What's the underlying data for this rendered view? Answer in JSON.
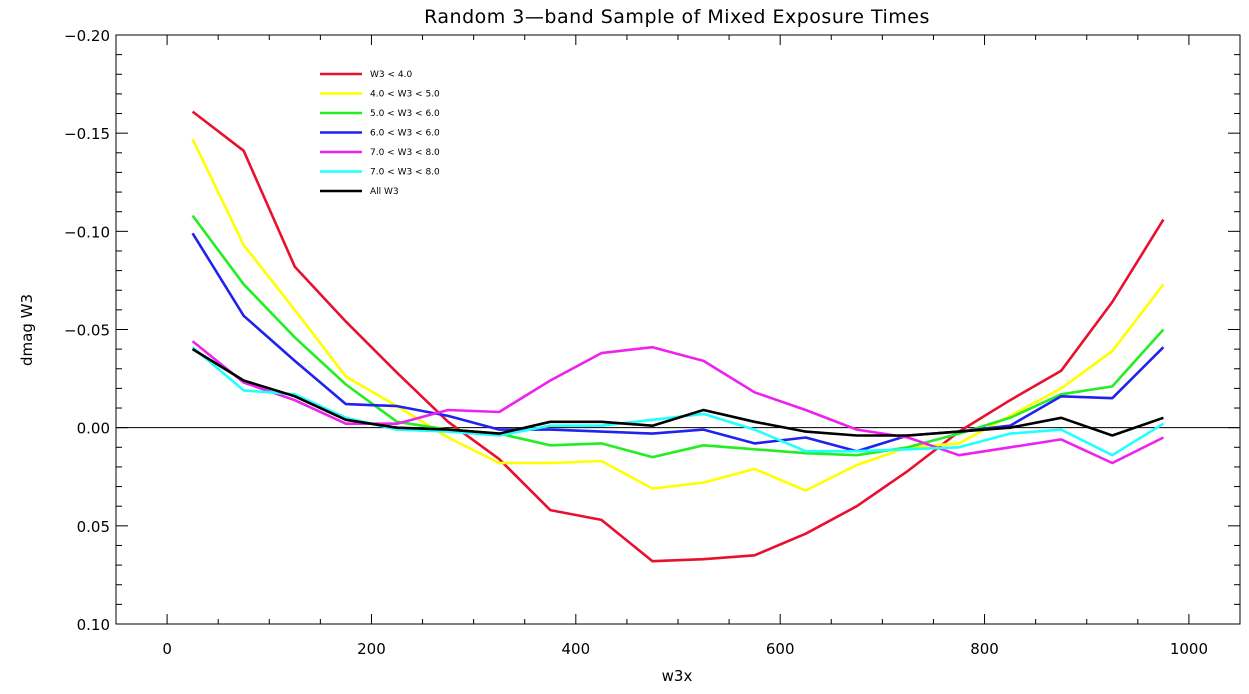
{
  "chart_data": {
    "type": "line",
    "title": "Random 3—band Sample of Mixed Exposure Times",
    "xlabel": "w3x",
    "ylabel": "dmag  W3",
    "xlim": [
      -50,
      1050
    ],
    "ylim": [
      0.1,
      -0.2
    ],
    "y_inverted": true,
    "x_ticks": [
      0,
      200,
      400,
      600,
      800,
      1000
    ],
    "x_tick_labels": [
      "0",
      "200",
      "400",
      "600",
      "800",
      "1000"
    ],
    "y_ticks": [
      -0.2,
      -0.15,
      -0.1,
      -0.05,
      0.0,
      0.05,
      0.1
    ],
    "y_tick_labels": [
      "−0.20",
      "−0.15",
      "−0.10",
      "−0.05",
      "0.00",
      "0.05",
      "0.10"
    ],
    "zero_line": true,
    "grid": false,
    "legend_position": "top-left",
    "x": [
      25,
      75,
      125,
      175,
      225,
      275,
      325,
      375,
      425,
      475,
      525,
      575,
      625,
      675,
      725,
      775,
      825,
      875,
      925,
      975
    ],
    "series": [
      {
        "name": "W3 < 4.0",
        "color": "#e8102c",
        "values": [
          -0.161,
          -0.141,
          -0.082,
          -0.054,
          -0.028,
          -0.003,
          0.016,
          0.042,
          0.047,
          0.068,
          0.067,
          0.065,
          0.054,
          0.04,
          0.022,
          0.002,
          -0.014,
          -0.029,
          -0.064,
          -0.106
        ]
      },
      {
        "name": "4.0 < W3 < 5.0",
        "color": "#ffff00",
        "values": [
          -0.147,
          -0.093,
          -0.06,
          -0.026,
          -0.011,
          0.005,
          0.018,
          0.018,
          0.017,
          0.031,
          0.028,
          0.021,
          0.032,
          0.019,
          0.01,
          0.008,
          -0.006,
          -0.02,
          -0.039,
          -0.073
        ]
      },
      {
        "name": "5.0 < W3 < 6.0",
        "color": "#22ee22",
        "values": [
          -0.108,
          -0.073,
          -0.046,
          -0.022,
          -0.003,
          0.001,
          0.003,
          0.009,
          0.008,
          0.015,
          0.009,
          0.011,
          0.013,
          0.014,
          0.01,
          0.003,
          -0.005,
          -0.017,
          -0.021,
          -0.05
        ]
      },
      {
        "name": "6.0 < W3 < 6.0",
        "color": "#2222ee",
        "values": [
          -0.099,
          -0.057,
          -0.034,
          -0.012,
          -0.011,
          -0.006,
          0.001,
          0.001,
          0.002,
          0.003,
          0.001,
          0.008,
          0.005,
          0.012,
          0.004,
          0.002,
          -0.001,
          -0.016,
          -0.015,
          -0.041
        ]
      },
      {
        "name": "7.0 < W3 < 8.0",
        "color": "#ee22ee",
        "values": [
          -0.044,
          -0.023,
          -0.014,
          -0.002,
          -0.002,
          -0.009,
          -0.008,
          -0.024,
          -0.038,
          -0.041,
          -0.034,
          -0.018,
          -0.009,
          0.001,
          0.005,
          0.014,
          0.01,
          0.006,
          0.018,
          0.005
        ]
      },
      {
        "name": "7.0 < W3 < 8.0",
        "color": "#22ffff",
        "values": [
          -0.041,
          -0.019,
          -0.017,
          -0.005,
          0.001,
          0.002,
          0.004,
          -0.001,
          -0.001,
          -0.004,
          -0.007,
          0.001,
          0.012,
          0.012,
          0.011,
          0.01,
          0.003,
          0.001,
          0.014,
          -0.002
        ]
      },
      {
        "name": "All W3",
        "color": "#000000",
        "values": [
          -0.04,
          -0.024,
          -0.016,
          -0.004,
          0.0,
          0.001,
          0.003,
          -0.003,
          -0.003,
          -0.001,
          -0.009,
          -0.003,
          0.002,
          0.004,
          0.004,
          0.002,
          0.0,
          -0.005,
          0.004,
          -0.005
        ]
      }
    ]
  }
}
